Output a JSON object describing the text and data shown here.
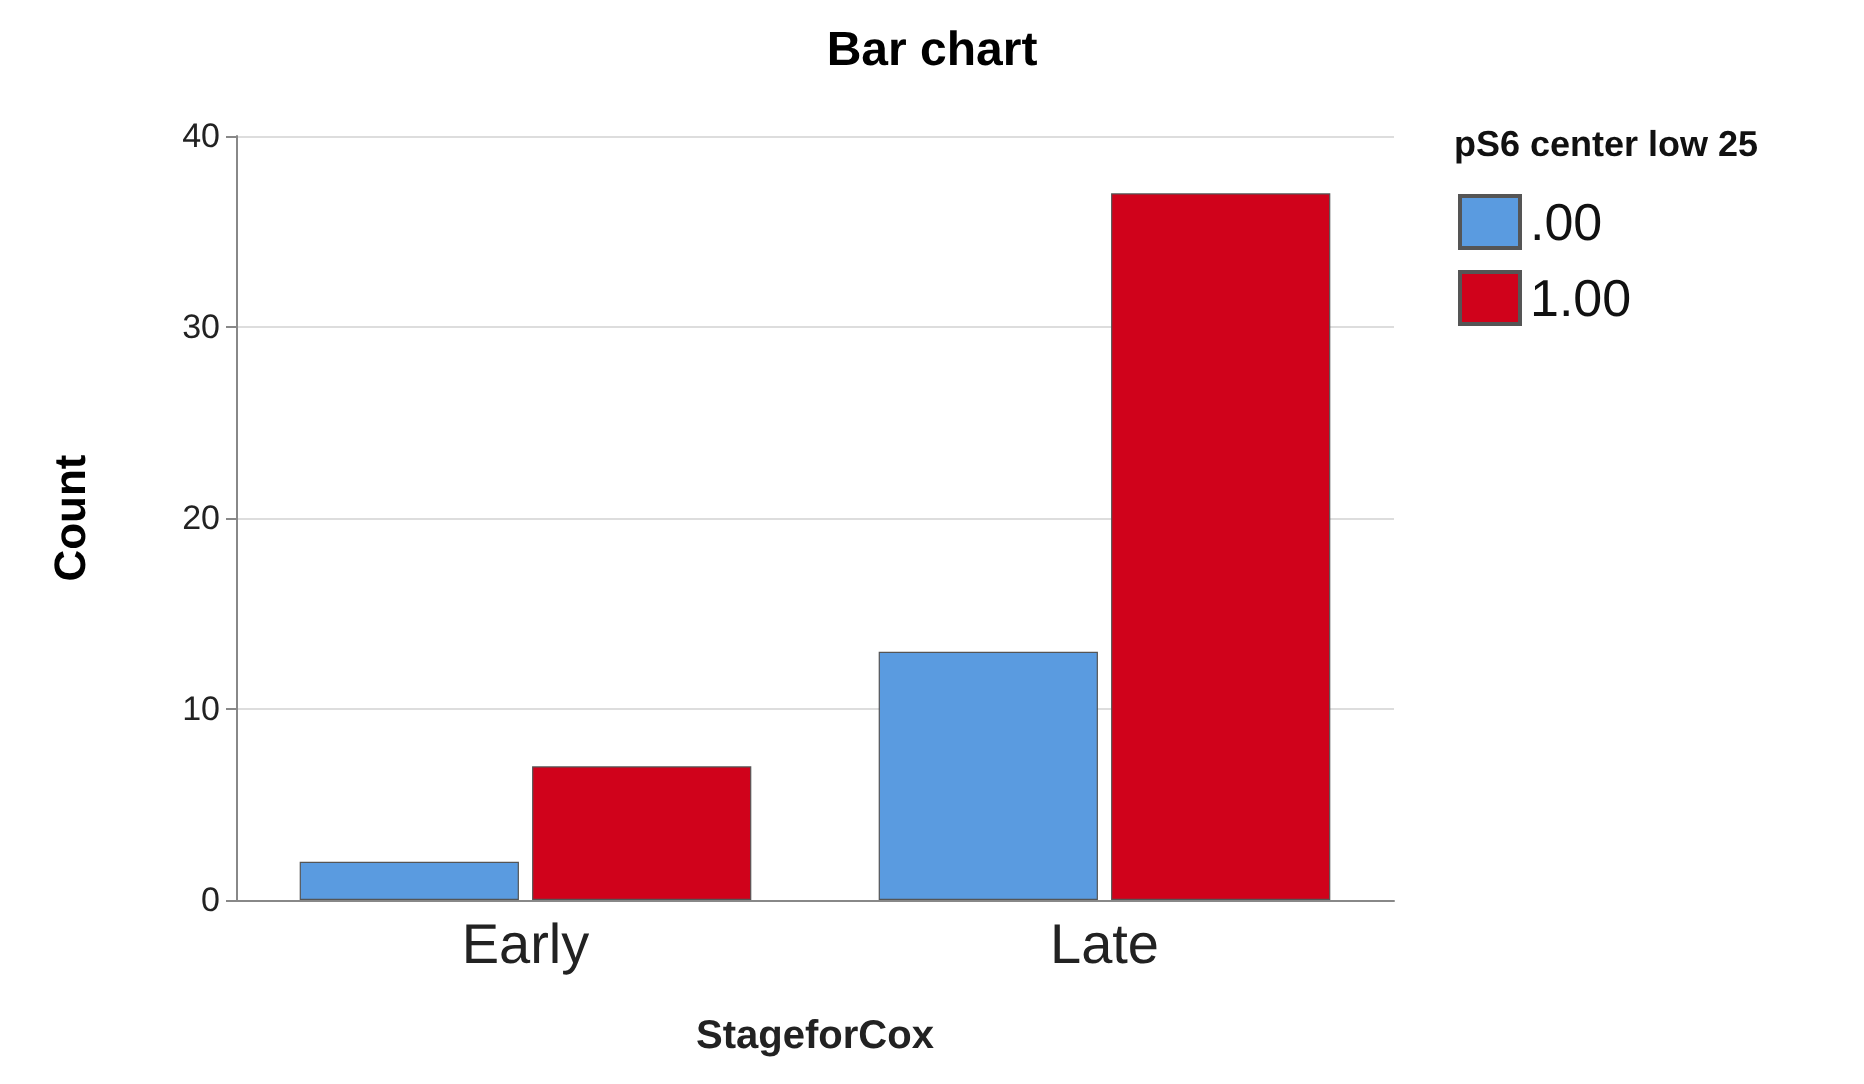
{
  "chart_data": {
    "type": "bar",
    "title": "Bar chart",
    "xlabel": "StageforCox",
    "ylabel": "Count",
    "legend_title": "pS6 center low 25",
    "categories": [
      "Early",
      "Late"
    ],
    "series": [
      {
        "name": ".00",
        "color": "#5a9be0",
        "values": [
          2,
          13
        ]
      },
      {
        "name": "1.00",
        "color": "#d0021b",
        "values": [
          7,
          37
        ]
      }
    ],
    "ylim": [
      0,
      40
    ],
    "yticks": [
      0,
      10,
      20,
      30,
      40
    ],
    "grid": "y",
    "legend": "top right"
  }
}
